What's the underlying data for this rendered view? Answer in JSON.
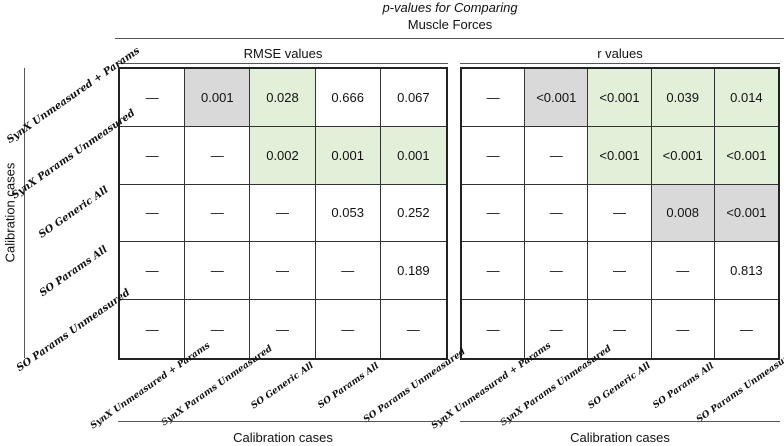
{
  "title": {
    "line1": "p-values for Comparing",
    "line2": "Muscle Forces"
  },
  "sections": [
    {
      "label": "RMSE values",
      "cells": [
        [
          "—",
          "0.001",
          "0.028",
          "0.666",
          "0.067"
        ],
        [
          "—",
          "—",
          "0.002",
          "0.001",
          "0.001"
        ],
        [
          "—",
          "—",
          "—",
          "0.053",
          "0.252"
        ],
        [
          "—",
          "—",
          "—",
          "—",
          "0.189"
        ],
        [
          "—",
          "—",
          "—",
          "—",
          "—"
        ]
      ]
    },
    {
      "label": "r values",
      "cells": [
        [
          "—",
          "<0.001",
          "<0.001",
          "0.039",
          "0.014"
        ],
        [
          "—",
          "—",
          "<0.001",
          "<0.001",
          "<0.001"
        ],
        [
          "—",
          "—",
          "—",
          "0.008",
          "<0.001"
        ],
        [
          "—",
          "—",
          "—",
          "—",
          "0.813"
        ],
        [
          "—",
          "—",
          "—",
          "—",
          "—"
        ]
      ]
    }
  ],
  "row_labels": [
    "SynX Unmeasured + Params",
    "SynX Params Unmeasured",
    "SO Generic All",
    "SO Params All",
    "SO Params Unmeasured"
  ],
  "col_labels": [
    "SynX Unmeasured + Params",
    "SynX Params Unmeasured",
    "SO Generic All",
    "SO Params All",
    "SO Params Unmeasured"
  ],
  "y_axis_label": "Calibration cases",
  "x_axis_labels": [
    "Calibration cases",
    "Calibration cases"
  ],
  "highlight_colors": {
    "gray": "#d9d9d9",
    "green": "#e2efd9"
  }
}
